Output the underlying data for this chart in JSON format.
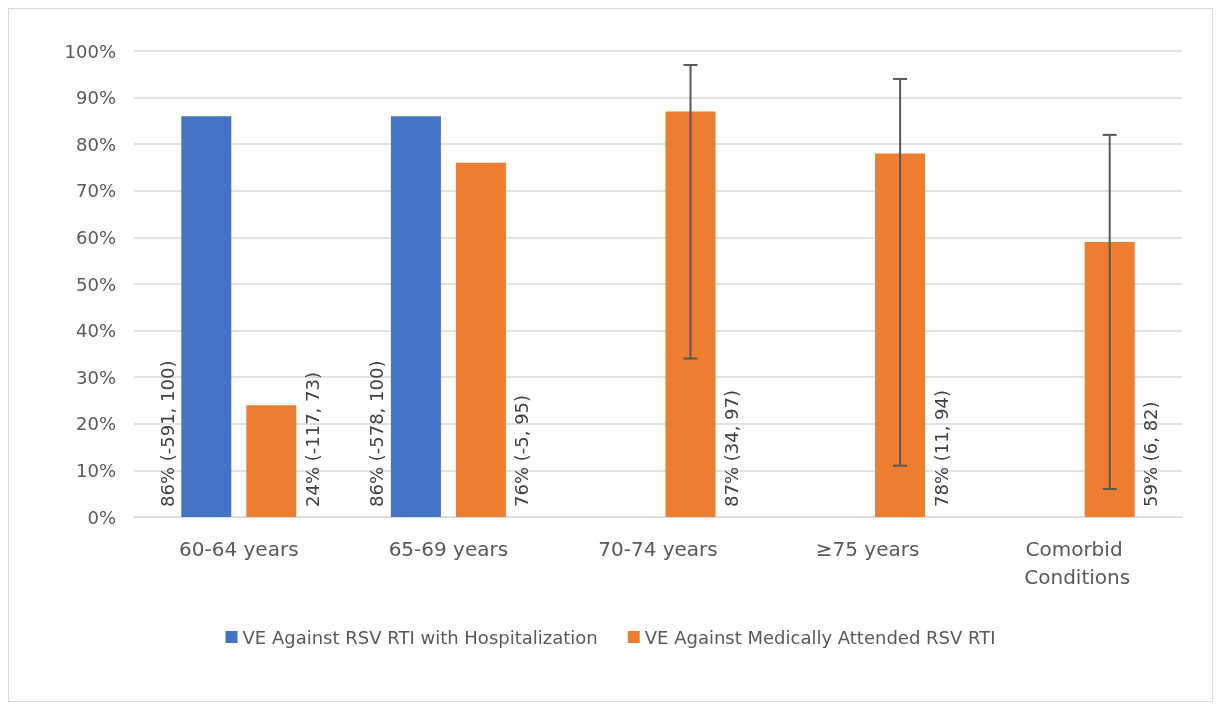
{
  "chart_data": {
    "type": "bar",
    "categories": [
      "60-64 years",
      "65-69 years",
      "70-74 years",
      "≥75 years",
      "Comorbid Conditions"
    ],
    "series": [
      {
        "name": "VE Against RSV RTI with Hospitalization",
        "color": "#4472c4",
        "values": [
          86,
          86,
          null,
          null,
          null
        ],
        "value_labels": [
          "86% (-591, 100)",
          "86% (-578, 100)",
          null,
          null,
          null
        ]
      },
      {
        "name": "VE Against Medically Attended RSV RTI",
        "color": "#ed7d31",
        "values": [
          24,
          76,
          87,
          78,
          59
        ],
        "errors": [
          null,
          null,
          [
            34,
            97
          ],
          [
            11,
            94
          ],
          [
            6,
            82
          ]
        ],
        "value_labels": [
          "24% (-117, 73)",
          "76% (-5, 95)",
          "87% (34, 97)",
          "78% (11, 94)",
          "59% (6, 82)"
        ]
      }
    ],
    "ylim": [
      0,
      100
    ],
    "yticks": [
      {
        "value": 0,
        "label": "0%"
      },
      {
        "value": 10,
        "label": "10%"
      },
      {
        "value": 20,
        "label": "20%"
      },
      {
        "value": 30,
        "label": "30%"
      },
      {
        "value": 40,
        "label": "40%"
      },
      {
        "value": 50,
        "label": "50%"
      },
      {
        "value": 60,
        "label": "60%"
      },
      {
        "value": 70,
        "label": "70%"
      },
      {
        "value": 80,
        "label": "80%"
      },
      {
        "value": 90,
        "label": "90%"
      },
      {
        "value": 100,
        "label": "100%"
      }
    ],
    "grid": "y",
    "legend": "bottom"
  }
}
